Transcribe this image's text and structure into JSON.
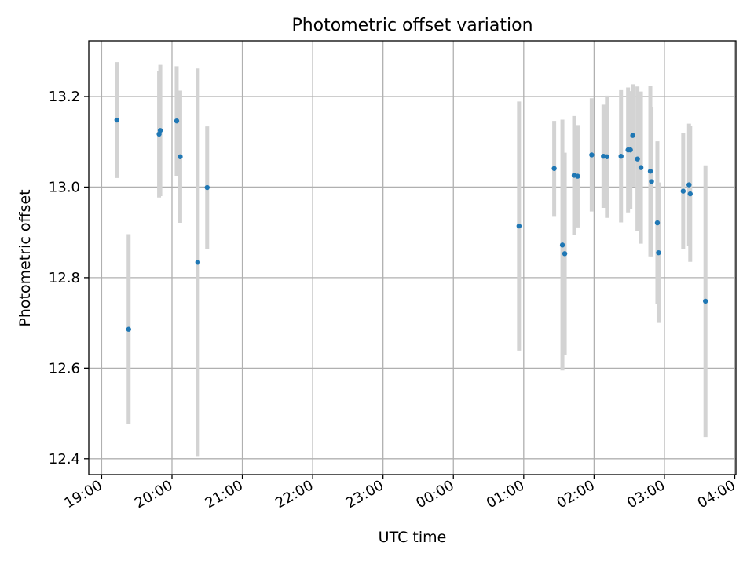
{
  "chart_data": {
    "type": "scatter",
    "title": "Photometric offset variation",
    "xlabel": "UTC time",
    "ylabel": "Photometric offset",
    "x_axis_type": "time",
    "xlim": [
      "2000-01-01T18:49:00",
      "2000-01-02T04:01:00"
    ],
    "ylim": [
      12.365,
      13.323
    ],
    "x_ticks": [
      {
        "label": "19:00",
        "t": "2000-01-01T19:00:00"
      },
      {
        "label": "20:00",
        "t": "2000-01-01T20:00:00"
      },
      {
        "label": "21:00",
        "t": "2000-01-01T21:00:00"
      },
      {
        "label": "22:00",
        "t": "2000-01-01T22:00:00"
      },
      {
        "label": "23:00",
        "t": "2000-01-01T23:00:00"
      },
      {
        "label": "00:00",
        "t": "2000-01-02T00:00:00"
      },
      {
        "label": "01:00",
        "t": "2000-01-02T01:00:00"
      },
      {
        "label": "02:00",
        "t": "2000-01-02T02:00:00"
      },
      {
        "label": "03:00",
        "t": "2000-01-02T03:00:00"
      },
      {
        "label": "04:00",
        "t": "2000-01-02T04:00:00"
      }
    ],
    "y_ticks": [
      {
        "label": "12.4",
        "v": 12.4
      },
      {
        "label": "12.6",
        "v": 12.6
      },
      {
        "label": "12.8",
        "v": 12.8
      },
      {
        "label": "13.0",
        "v": 13.0
      },
      {
        "label": "13.2",
        "v": 13.2
      }
    ],
    "grid": true,
    "colors": {
      "point": "#1f77b4",
      "errorbar": "#d3d3d3",
      "grid": "#b0b0b0"
    },
    "points": [
      {
        "t": "2000-01-01T19:13:00",
        "y": 13.148,
        "err": 0.128
      },
      {
        "t": "2000-01-01T19:23:00",
        "y": 12.686,
        "err": 0.21
      },
      {
        "t": "2000-01-01T19:49:00",
        "y": 13.117,
        "err": 0.14
      },
      {
        "t": "2000-01-01T19:50:00",
        "y": 13.125,
        "err": 0.145
      },
      {
        "t": "2000-01-01T20:04:00",
        "y": 13.146,
        "err": 0.121
      },
      {
        "t": "2000-01-01T20:07:00",
        "y": 13.067,
        "err": 0.146
      },
      {
        "t": "2000-01-01T20:22:00",
        "y": 12.834,
        "err": 0.428
      },
      {
        "t": "2000-01-01T20:30:00",
        "y": 12.999,
        "err": 0.135
      },
      {
        "t": "2000-01-02T00:56:00",
        "y": 12.914,
        "err": 0.275
      },
      {
        "t": "2000-01-02T01:26:00",
        "y": 13.041,
        "err": 0.105
      },
      {
        "t": "2000-01-02T01:33:00",
        "y": 12.872,
        "err": 0.277
      },
      {
        "t": "2000-01-02T01:35:00",
        "y": 12.853,
        "err": 0.223
      },
      {
        "t": "2000-01-02T01:43:00",
        "y": 13.026,
        "err": 0.131
      },
      {
        "t": "2000-01-02T01:46:00",
        "y": 13.024,
        "err": 0.113
      },
      {
        "t": "2000-01-02T01:58:00",
        "y": 13.071,
        "err": 0.125
      },
      {
        "t": "2000-01-02T02:08:00",
        "y": 13.068,
        "err": 0.114
      },
      {
        "t": "2000-01-02T02:11:00",
        "y": 13.067,
        "err": 0.135
      },
      {
        "t": "2000-01-02T02:23:00",
        "y": 13.068,
        "err": 0.146
      },
      {
        "t": "2000-01-02T02:29:00",
        "y": 13.082,
        "err": 0.138
      },
      {
        "t": "2000-01-02T02:31:00",
        "y": 13.082,
        "err": 0.13
      },
      {
        "t": "2000-01-02T02:33:00",
        "y": 13.114,
        "err": 0.113
      },
      {
        "t": "2000-01-02T02:37:00",
        "y": 13.062,
        "err": 0.16
      },
      {
        "t": "2000-01-02T02:40:00",
        "y": 13.043,
        "err": 0.168
      },
      {
        "t": "2000-01-02T02:48:00",
        "y": 13.035,
        "err": 0.188
      },
      {
        "t": "2000-01-02T02:49:00",
        "y": 13.012,
        "err": 0.165
      },
      {
        "t": "2000-01-02T02:54:00",
        "y": 12.921,
        "err": 0.18
      },
      {
        "t": "2000-01-02T02:55:00",
        "y": 12.855,
        "err": 0.155
      },
      {
        "t": "2000-01-02T03:16:00",
        "y": 12.991,
        "err": 0.128
      },
      {
        "t": "2000-01-02T03:21:00",
        "y": 13.005,
        "err": 0.135
      },
      {
        "t": "2000-01-02T03:22:00",
        "y": 12.985,
        "err": 0.15
      },
      {
        "t": "2000-01-02T03:35:00",
        "y": 12.748,
        "err": 0.3
      }
    ]
  }
}
